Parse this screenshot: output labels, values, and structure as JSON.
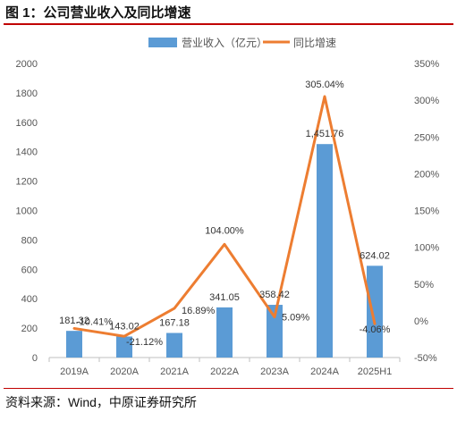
{
  "figure_title": "图 1：公司营业收入及同比增速",
  "source_note": "资料来源：Wind，中原证券研究所",
  "colors": {
    "bar": "#5b9bd5",
    "line": "#ed7d31",
    "rule": "#c00000"
  },
  "chart_data": {
    "type": "bar",
    "categories": [
      "2019A",
      "2020A",
      "2021A",
      "2022A",
      "2023A",
      "2024A",
      "2025H1"
    ],
    "series": [
      {
        "name": "营业收入（亿元）",
        "type": "bar",
        "axis": "left",
        "values": [
          181.32,
          143.02,
          167.18,
          341.05,
          358.42,
          1451.76,
          624.02
        ],
        "labels": [
          "181.32",
          "143.02",
          "167.18",
          "341.05",
          "358.42",
          "1,451.76",
          "624.02"
        ]
      },
      {
        "name": "同比增速",
        "type": "line",
        "axis": "right",
        "values": [
          -10.41,
          -21.12,
          16.89,
          104.0,
          5.09,
          305.04,
          -4.06
        ],
        "labels": [
          "-10.41%",
          "-21.12%",
          "16.89%",
          "104.00%",
          "5.09%",
          "305.04%",
          "-4.06%"
        ]
      }
    ],
    "y_left": {
      "min": 0,
      "max": 2000,
      "step": 200
    },
    "y_right": {
      "min": -50,
      "max": 350,
      "step": 50,
      "unit": "%"
    },
    "legend_position": "top-center",
    "grid": false
  }
}
